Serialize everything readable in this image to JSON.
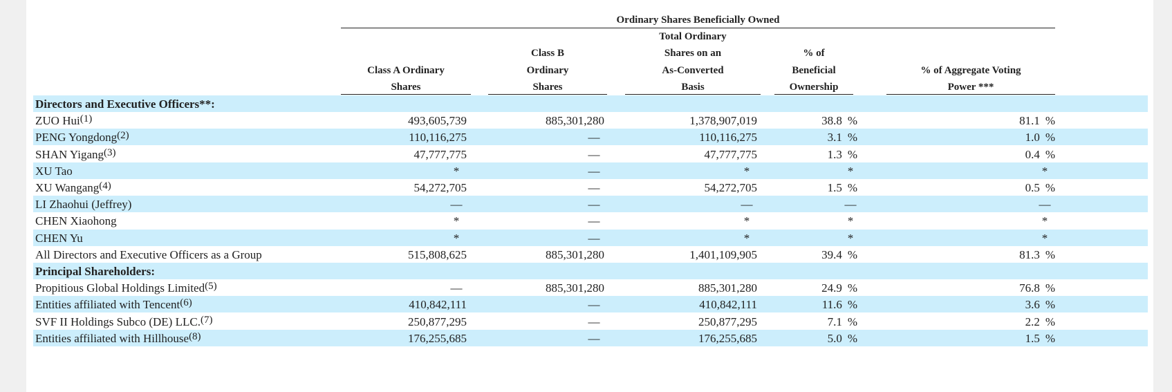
{
  "header": {
    "group_title": "Ordinary Shares Beneficially Owned",
    "columns": [
      {
        "lines": [
          "Class A Ordinary",
          "Shares"
        ]
      },
      {
        "lines": [
          "Class B",
          "Ordinary",
          "Shares"
        ]
      },
      {
        "lines": [
          "Total Ordinary",
          "Shares on an",
          "As-Converted",
          "Basis"
        ]
      },
      {
        "lines": [
          "% of",
          "Beneficial",
          "Ownership"
        ]
      },
      {
        "lines": [
          "% of Aggregate Voting",
          "Power ***"
        ]
      }
    ]
  },
  "rows": [
    {
      "type": "section",
      "label": "Directors and Executive Officers**:",
      "fn": ""
    },
    {
      "type": "data",
      "label": "ZUO Hui",
      "fn": "(1)",
      "class_a": "493,605,739",
      "class_b": "885,301,280",
      "total": "1,378,907,019",
      "beneficial": "38.8",
      "voting": "81.1"
    },
    {
      "type": "data",
      "label": "PENG Yongdong",
      "fn": "(2)",
      "class_a": "110,116,275",
      "class_b": "—",
      "total": "110,116,275",
      "beneficial": "3.1",
      "voting": "1.0"
    },
    {
      "type": "data",
      "label": "SHAN Yigang",
      "fn": "(3)",
      "class_a": "47,777,775",
      "class_b": "—",
      "total": "47,777,775",
      "beneficial": "1.3",
      "voting": "0.4"
    },
    {
      "type": "data",
      "label": "XU Tao",
      "fn": "",
      "class_a": "*",
      "class_b": "—",
      "total": "*",
      "beneficial": "*",
      "voting": "*"
    },
    {
      "type": "data",
      "label": "XU Wangang",
      "fn": "(4)",
      "class_a": "54,272,705",
      "class_b": "—",
      "total": "54,272,705",
      "beneficial": "1.5",
      "voting": "0.5"
    },
    {
      "type": "data",
      "label": "LI Zhaohui (Jeffrey)",
      "fn": "",
      "class_a": "—",
      "class_b": "—",
      "total": "—",
      "beneficial": "—",
      "voting": "—"
    },
    {
      "type": "data",
      "label": "CHEN Xiaohong",
      "fn": "",
      "class_a": "*",
      "class_b": "—",
      "total": "*",
      "beneficial": "*",
      "voting": "*"
    },
    {
      "type": "data",
      "label": "CHEN Yu",
      "fn": "",
      "class_a": "*",
      "class_b": "—",
      "total": "*",
      "beneficial": "*",
      "voting": "*"
    },
    {
      "type": "data",
      "label": "All Directors and Executive Officers as a Group",
      "fn": "",
      "class_a": "515,808,625",
      "class_b": "885,301,280",
      "total": "1,401,109,905",
      "beneficial": "39.4",
      "voting": "81.3"
    },
    {
      "type": "section",
      "label": "Principal Shareholders:",
      "fn": ""
    },
    {
      "type": "data",
      "label": "Propitious Global Holdings Limited",
      "fn": "(5)",
      "class_a": "—",
      "class_b": "885,301,280",
      "total": "885,301,280",
      "beneficial": "24.9",
      "voting": "76.8"
    },
    {
      "type": "data",
      "label": "Entities affiliated with Tencent",
      "fn": "(6)",
      "class_a": "410,842,111",
      "class_b": "—",
      "total": "410,842,111",
      "beneficial": "11.6",
      "voting": "3.6"
    },
    {
      "type": "data",
      "label": "SVF II Holdings Subco (DE) LLC.",
      "fn": "(7)",
      "class_a": "250,877,295",
      "class_b": "—",
      "total": "250,877,295",
      "beneficial": "7.1",
      "voting": "2.2"
    },
    {
      "type": "data",
      "label": "Entities affiliated with Hillhouse",
      "fn": "(8)",
      "class_a": "176,255,685",
      "class_b": "—",
      "total": "176,255,685",
      "beneficial": "5.0",
      "voting": "1.5"
    }
  ],
  "pct_sign": "%",
  "colors": {
    "shade": "#cceefc",
    "page": "#ffffff",
    "gutter": "#f0f0f0"
  }
}
